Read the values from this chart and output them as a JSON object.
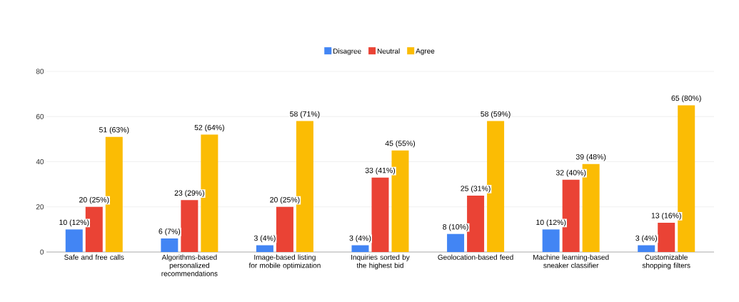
{
  "chart_data": {
    "type": "bar",
    "categories": [
      "Safe and free calls",
      "Algorithms-based personalized recommendations",
      "Image-based listing for mobile optimization",
      "Inquiries sorted by the highest bid",
      "Geolocation-based feed",
      "Machine learning-based sneaker classifier",
      "Customizable shopping filters"
    ],
    "series": [
      {
        "name": "Disagree",
        "color": "#4285f4",
        "values": [
          10,
          6,
          3,
          3,
          8,
          10,
          3
        ],
        "value_labels": [
          "10 (12%)",
          "6 (7%)",
          "3 (4%)",
          "3 (4%)",
          "8 (10%)",
          "10 (12%)",
          "3 (4%)"
        ]
      },
      {
        "name": "Neutral",
        "color": "#ea4335",
        "values": [
          20,
          23,
          20,
          33,
          25,
          32,
          13
        ],
        "value_labels": [
          "20 (25%)",
          "23 (29%)",
          "20 (25%)",
          "33 (41%)",
          "25 (31%)",
          "32 (40%)",
          "13 (16%)"
        ]
      },
      {
        "name": "Agree",
        "color": "#fbbc04",
        "values": [
          51,
          52,
          58,
          45,
          58,
          39,
          65
        ],
        "value_labels": [
          "51 (63%)",
          "52 (64%)",
          "58 (71%)",
          "45 (55%)",
          "58 (59%)",
          "39 (48%)",
          "65 (80%)"
        ]
      }
    ],
    "ylim": [
      0,
      80
    ],
    "yticks": [
      0,
      20,
      40,
      60,
      80
    ],
    "grid": "y",
    "legend": "top"
  }
}
